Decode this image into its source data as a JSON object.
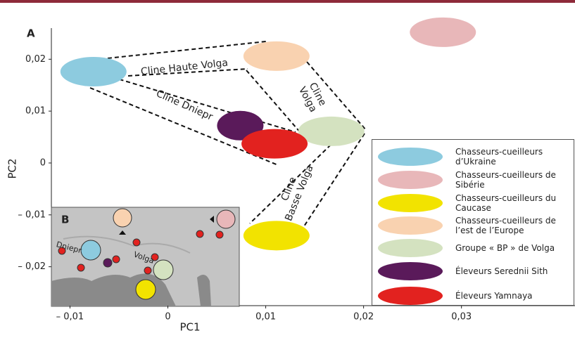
{
  "chart_data": {
    "type": "scatter",
    "panel_label": "A",
    "x_label": "PC1",
    "y_label": "PC2",
    "xlim": [
      -0.0119,
      0.0416
    ],
    "ylim": [
      -0.0275,
      0.026
    ],
    "xticks": [
      {
        "value": -0.01,
        "label": "– 0,01"
      },
      0,
      {
        "value": 0.01,
        "label": "0,01"
      },
      {
        "value": 0.02,
        "label": "0,02"
      },
      {
        "value": 0.03,
        "label": "0,03"
      }
    ],
    "yticks": [
      {
        "value": 0.02,
        "label": "0,02"
      },
      {
        "value": 0.01,
        "label": "0,01"
      },
      0,
      {
        "value": -0.01,
        "label": "– 0,01"
      },
      {
        "value": -0.02,
        "label": "– 0,02"
      }
    ],
    "series": [
      {
        "name": "Chasseurs-cueilleurs d’Ukraine",
        "color": "#8dcbdf",
        "x": [
          -0.0076
        ],
        "values": [
          0.0176
        ]
      },
      {
        "name": "Chasseurs-cueilleurs de Sibérie",
        "color": "#e8b7b9",
        "x": [
          0.0281
        ],
        "values": [
          0.0252
        ]
      },
      {
        "name": "Chasseurs-cueilleurs du Caucase",
        "color": "#f2e300",
        "x": [
          0.0111
        ],
        "values": [
          -0.014
        ]
      },
      {
        "name": "Chasseurs-cueilleurs de l’est de l’Europe",
        "color": "#f9d2b0",
        "x": [
          0.0111
        ],
        "values": [
          0.0206
        ]
      },
      {
        "name": "Groupe « BP » de Volga",
        "color": "#d4e2c0",
        "x": [
          0.0167
        ],
        "values": [
          0.0061
        ]
      },
      {
        "name": "Éleveurs Serednii Sith",
        "color": "#5a1a5a",
        "x": [
          0.0074
        ],
        "values": [
          0.0072
        ]
      },
      {
        "name": "Éleveurs Yamnaya",
        "color": "#e2221f",
        "x": [
          0.0109
        ],
        "values": [
          0.0037
        ]
      }
    ],
    "annotations": [
      {
        "lines": [
          "Cline Haute Volga"
        ]
      },
      {
        "lines": [
          "Cline Dniepr"
        ]
      },
      {
        "lines": [
          "Cline",
          "Volga"
        ]
      },
      {
        "lines": [
          "Cline",
          "Basse Volga"
        ]
      }
    ],
    "inset": {
      "label": "B",
      "rivers": [
        "Dniepr",
        "Volga"
      ]
    }
  }
}
